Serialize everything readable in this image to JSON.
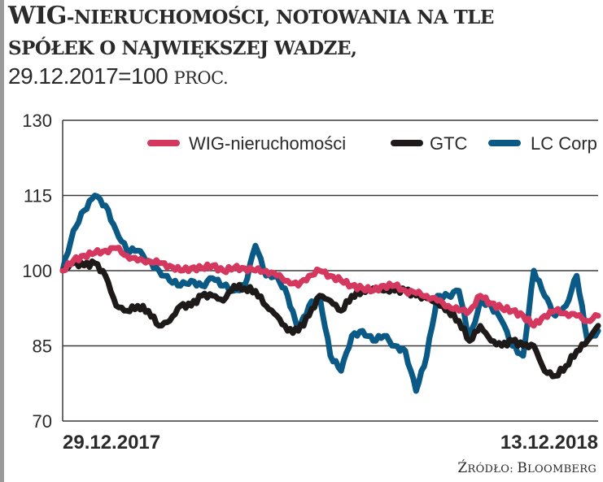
{
  "title": {
    "line1_main": "WIG",
    "line1_rest": "-NIERUCHOMOŚCI, NOTOWANIA NA TLE",
    "line2": "SPÓŁEK O NAJWIĘKSZEJ WADZE,",
    "line3_main": "29.12.2017=100 ",
    "line3_rest": "PROC."
  },
  "source": {
    "prefix": "Ź",
    "rest": "RÓDŁO: ",
    "name_initial": "B",
    "name_rest": "LOOMBERG"
  },
  "colors": {
    "wig": "#D4385E",
    "gtc": "#1F1A1A",
    "lc": "#0B5A86",
    "grid": "#3a3a3a"
  },
  "chart_data": {
    "type": "line",
    "title": "WIG-nieruchomości, notowania na tle spółek o największej wadze, 29.12.2017=100 proc.",
    "xlabel": "",
    "ylabel": "",
    "ylim": [
      70,
      130
    ],
    "yticks": [
      70,
      85,
      100,
      115,
      130
    ],
    "xtick_labels": [
      "29.12.2017",
      "13.12.2018"
    ],
    "grid": "horizontal",
    "legend_position": "top-right inside",
    "x": [
      0,
      2,
      4,
      6,
      8,
      10,
      12,
      14,
      16,
      18,
      20,
      22,
      24,
      26,
      28,
      30,
      32,
      34,
      36,
      38,
      40,
      42,
      44,
      46,
      48,
      50,
      52,
      54,
      56,
      58,
      60,
      62,
      64,
      66,
      68,
      70,
      72,
      74,
      76,
      78,
      80,
      82,
      84,
      86,
      88,
      90,
      92,
      94,
      96,
      98,
      100
    ],
    "series": [
      {
        "name": "WIG-nieruchomości",
        "values": [
          100,
          102,
          103,
          103.5,
          104,
          104.5,
          103,
          102,
          102,
          101.5,
          101,
          100,
          100.5,
          100.5,
          101,
          100,
          100.5,
          100.5,
          100,
          100,
          99,
          98,
          97,
          99,
          100,
          99,
          98,
          97,
          96.5,
          96,
          97,
          97,
          96,
          95.5,
          95,
          94,
          93,
          92,
          92,
          95,
          93.5,
          92.5,
          92,
          91,
          89,
          91,
          92,
          91.5,
          91,
          90,
          91
        ]
      },
      {
        "name": "GTC",
        "values": [
          100,
          101.5,
          101,
          101.5,
          99,
          93,
          92,
          93,
          92,
          89,
          90,
          93,
          93,
          95,
          95,
          94,
          97,
          96.5,
          96,
          93,
          91,
          88,
          88,
          91,
          95,
          94,
          92,
          95,
          96,
          96.5,
          96,
          96,
          96,
          95,
          94.5,
          93.5,
          92,
          90,
          86,
          89,
          86,
          85,
          86,
          85,
          85,
          80,
          79,
          81,
          84,
          86,
          89
        ]
      },
      {
        "name": "LC Corp",
        "values": [
          100,
          108,
          112,
          115,
          113,
          108,
          104,
          104,
          102,
          100,
          98,
          97,
          98,
          97,
          98.5,
          97,
          96,
          97,
          105,
          99,
          99,
          95,
          88,
          93,
          95,
          83,
          80,
          87,
          88,
          86,
          87,
          85,
          84,
          76,
          83,
          95,
          95,
          96,
          86,
          94,
          93,
          90,
          85,
          83,
          100,
          95,
          91,
          93,
          99,
          86,
          88
        ]
      }
    ]
  },
  "legend": {
    "items": [
      {
        "label": "WIG-nieruchomości"
      },
      {
        "label": "GTC"
      },
      {
        "label": "LC Corp"
      }
    ]
  },
  "axis": {
    "y": [
      "130",
      "115",
      "100",
      "85",
      "70"
    ],
    "x_start": "29.12.2017",
    "x_end": "13.12.2018"
  }
}
